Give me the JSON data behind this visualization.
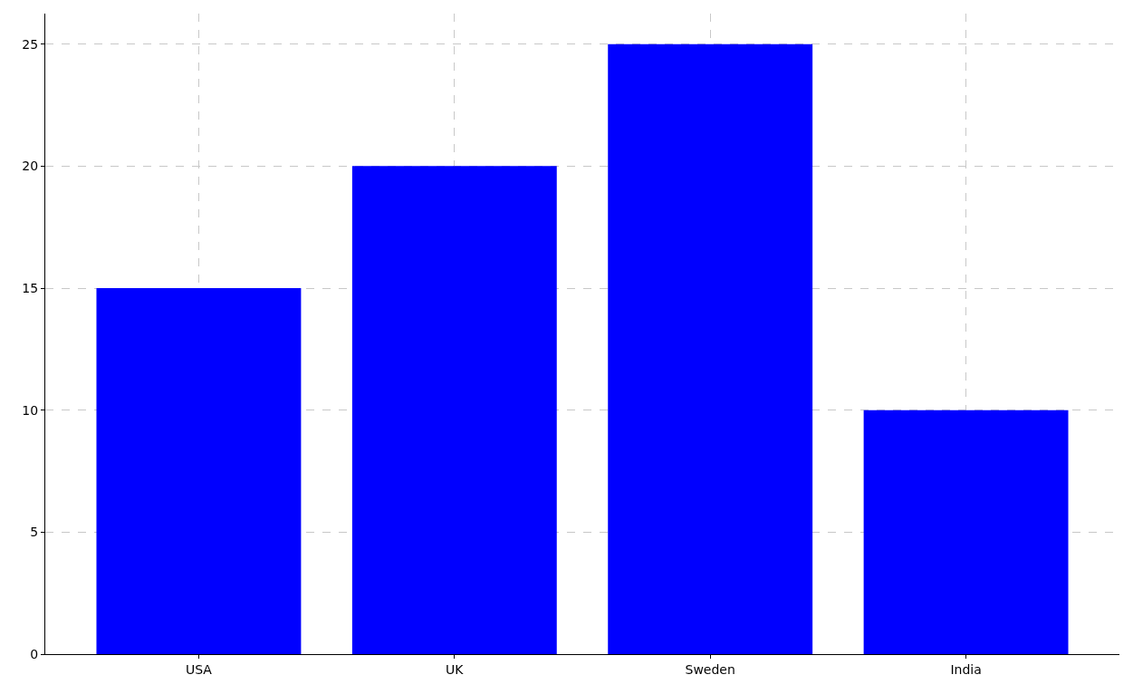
{
  "chart_data": {
    "type": "bar",
    "categories": [
      "USA",
      "UK",
      "Sweden",
      "India"
    ],
    "values": [
      15,
      20,
      25,
      10
    ],
    "color": "#0000ff",
    "ylim": [
      0,
      26.25
    ],
    "yticks": [
      0,
      5,
      10,
      15,
      20,
      25
    ],
    "grid": true
  }
}
